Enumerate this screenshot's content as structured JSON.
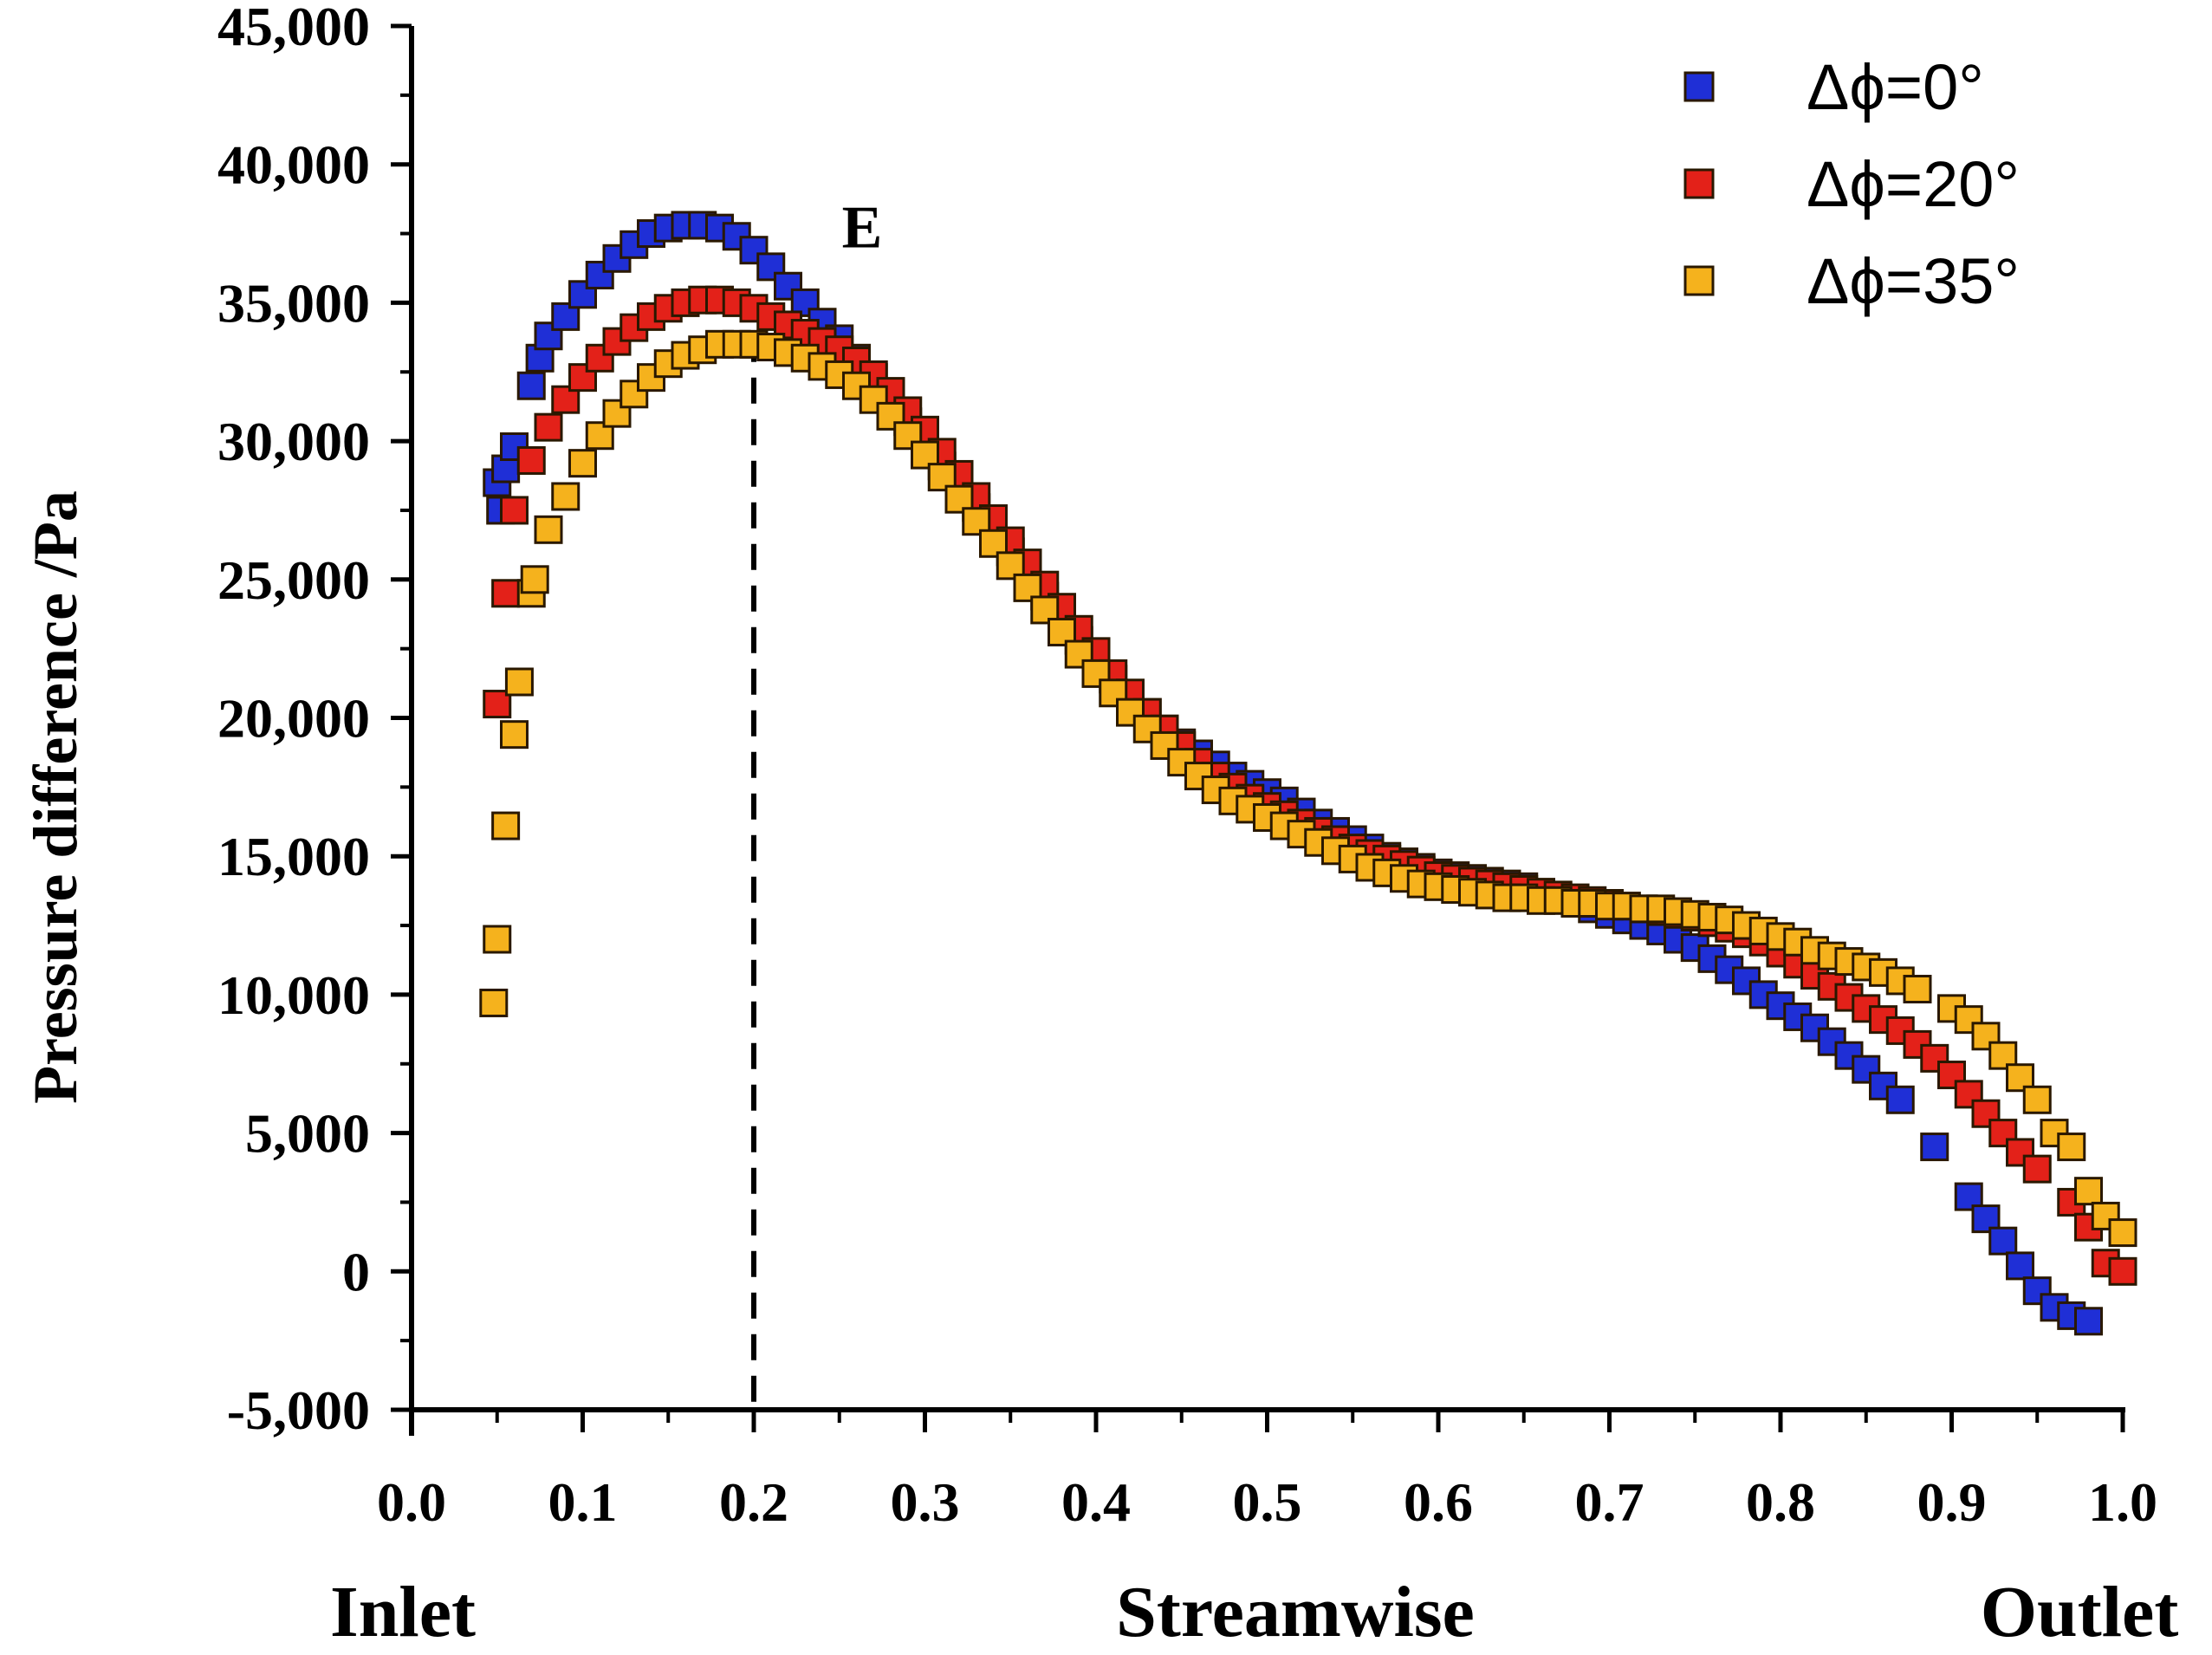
{
  "chart_data": {
    "type": "scatter",
    "title": "",
    "xlabel": "Streamwise",
    "ylabel": "Pressure difference /Pa",
    "x_end_labels": {
      "left": "Inlet",
      "right": "Outlet"
    },
    "xlim": [
      0.0,
      1.0
    ],
    "ylim": [
      -5000,
      45000
    ],
    "x_ticks": [
      "0.0",
      "0.1",
      "0.2",
      "0.3",
      "0.4",
      "0.5",
      "0.6",
      "0.7",
      "0.8",
      "0.9",
      "1.0"
    ],
    "y_ticks": [
      "-5,000",
      "0",
      "5,000",
      "10,000",
      "15,000",
      "20,000",
      "25,000",
      "30,000",
      "35,000",
      "40,000",
      "45,000"
    ],
    "grid": false,
    "legend_position": "top-right",
    "annotation": {
      "label": "E",
      "x": 0.2,
      "style": "dashed vertical line"
    },
    "series": [
      {
        "name": "Δϕ=0°",
        "color": "#1f2fd6",
        "points": [
          [
            0.05,
            28500
          ],
          [
            0.052,
            27500
          ],
          [
            0.055,
            29000
          ],
          [
            0.06,
            29800
          ],
          [
            0.07,
            32000
          ],
          [
            0.075,
            33000
          ],
          [
            0.08,
            33800
          ],
          [
            0.09,
            34500
          ],
          [
            0.1,
            35300
          ],
          [
            0.11,
            36000
          ],
          [
            0.12,
            36600
          ],
          [
            0.13,
            37100
          ],
          [
            0.14,
            37500
          ],
          [
            0.15,
            37700
          ],
          [
            0.16,
            37800
          ],
          [
            0.17,
            37800
          ],
          [
            0.18,
            37700
          ],
          [
            0.19,
            37400
          ],
          [
            0.2,
            36900
          ],
          [
            0.21,
            36300
          ],
          [
            0.22,
            35600
          ],
          [
            0.23,
            35000
          ],
          [
            0.24,
            34300
          ],
          [
            0.25,
            33700
          ],
          [
            0.26,
            33000
          ],
          [
            0.27,
            32300
          ],
          [
            0.28,
            31500
          ],
          [
            0.29,
            30700
          ],
          [
            0.3,
            29900
          ],
          [
            0.31,
            29100
          ],
          [
            0.32,
            28300
          ],
          [
            0.33,
            27600
          ],
          [
            0.34,
            26800
          ],
          [
            0.35,
            26000
          ],
          [
            0.36,
            25200
          ],
          [
            0.37,
            24400
          ],
          [
            0.38,
            23600
          ],
          [
            0.39,
            22800
          ],
          [
            0.4,
            22100
          ],
          [
            0.41,
            21400
          ],
          [
            0.42,
            20800
          ],
          [
            0.43,
            20200
          ],
          [
            0.44,
            19600
          ],
          [
            0.45,
            19100
          ],
          [
            0.46,
            18700
          ],
          [
            0.47,
            18300
          ],
          [
            0.48,
            17900
          ],
          [
            0.49,
            17600
          ],
          [
            0.5,
            17300
          ],
          [
            0.51,
            17000
          ],
          [
            0.52,
            16600
          ],
          [
            0.53,
            16200
          ],
          [
            0.54,
            15900
          ],
          [
            0.55,
            15600
          ],
          [
            0.56,
            15300
          ],
          [
            0.57,
            15000
          ],
          [
            0.58,
            14800
          ],
          [
            0.59,
            14600
          ],
          [
            0.6,
            14400
          ],
          [
            0.61,
            14300
          ],
          [
            0.62,
            14200
          ],
          [
            0.63,
            14100
          ],
          [
            0.64,
            14000
          ],
          [
            0.65,
            13900
          ],
          [
            0.66,
            13700
          ],
          [
            0.67,
            13500
          ],
          [
            0.68,
            13300
          ],
          [
            0.69,
            13100
          ],
          [
            0.7,
            12900
          ],
          [
            0.71,
            12700
          ],
          [
            0.72,
            12500
          ],
          [
            0.73,
            12300
          ],
          [
            0.74,
            12000
          ],
          [
            0.75,
            11700
          ],
          [
            0.76,
            11300
          ],
          [
            0.77,
            10900
          ],
          [
            0.78,
            10500
          ],
          [
            0.79,
            10000
          ],
          [
            0.8,
            9600
          ],
          [
            0.81,
            9200
          ],
          [
            0.82,
            8800
          ],
          [
            0.83,
            8300
          ],
          [
            0.84,
            7800
          ],
          [
            0.85,
            7300
          ],
          [
            0.86,
            6700
          ],
          [
            0.87,
            6200
          ],
          [
            0.89,
            4500
          ],
          [
            0.91,
            2700
          ],
          [
            0.92,
            1900
          ],
          [
            0.93,
            1100
          ],
          [
            0.94,
            200
          ],
          [
            0.95,
            -700
          ],
          [
            0.96,
            -1300
          ],
          [
            0.97,
            -1600
          ],
          [
            0.98,
            -1800
          ]
        ]
      },
      {
        "name": "Δϕ=20°",
        "color": "#e32119",
        "points": [
          [
            0.05,
            20500
          ],
          [
            0.055,
            24500
          ],
          [
            0.06,
            27500
          ],
          [
            0.07,
            29300
          ],
          [
            0.08,
            30500
          ],
          [
            0.09,
            31500
          ],
          [
            0.1,
            32300
          ],
          [
            0.11,
            33000
          ],
          [
            0.12,
            33600
          ],
          [
            0.13,
            34100
          ],
          [
            0.14,
            34500
          ],
          [
            0.15,
            34800
          ],
          [
            0.16,
            35000
          ],
          [
            0.17,
            35100
          ],
          [
            0.18,
            35100
          ],
          [
            0.19,
            35000
          ],
          [
            0.2,
            34800
          ],
          [
            0.21,
            34500
          ],
          [
            0.22,
            34200
          ],
          [
            0.23,
            33900
          ],
          [
            0.24,
            33600
          ],
          [
            0.25,
            33300
          ],
          [
            0.26,
            32900
          ],
          [
            0.27,
            32400
          ],
          [
            0.28,
            31800
          ],
          [
            0.29,
            31100
          ],
          [
            0.3,
            30400
          ],
          [
            0.31,
            29600
          ],
          [
            0.32,
            28800
          ],
          [
            0.33,
            28000
          ],
          [
            0.34,
            27200
          ],
          [
            0.35,
            26400
          ],
          [
            0.36,
            25600
          ],
          [
            0.37,
            24800
          ],
          [
            0.38,
            24000
          ],
          [
            0.39,
            23200
          ],
          [
            0.4,
            22400
          ],
          [
            0.41,
            21600
          ],
          [
            0.42,
            20900
          ],
          [
            0.43,
            20200
          ],
          [
            0.44,
            19600
          ],
          [
            0.45,
            19000
          ],
          [
            0.46,
            18400
          ],
          [
            0.47,
            17900
          ],
          [
            0.48,
            17500
          ],
          [
            0.49,
            17100
          ],
          [
            0.5,
            16800
          ],
          [
            0.51,
            16500
          ],
          [
            0.52,
            16200
          ],
          [
            0.53,
            15900
          ],
          [
            0.54,
            15600
          ],
          [
            0.55,
            15300
          ],
          [
            0.56,
            15100
          ],
          [
            0.57,
            14900
          ],
          [
            0.58,
            14700
          ],
          [
            0.59,
            14500
          ],
          [
            0.6,
            14300
          ],
          [
            0.61,
            14200
          ],
          [
            0.62,
            14100
          ],
          [
            0.63,
            14000
          ],
          [
            0.64,
            13900
          ],
          [
            0.65,
            13800
          ],
          [
            0.66,
            13700
          ],
          [
            0.67,
            13600
          ],
          [
            0.68,
            13500
          ],
          [
            0.69,
            13400
          ],
          [
            0.7,
            13300
          ],
          [
            0.71,
            13200
          ],
          [
            0.72,
            13100
          ],
          [
            0.73,
            13000
          ],
          [
            0.74,
            12900
          ],
          [
            0.75,
            12800
          ],
          [
            0.76,
            12600
          ],
          [
            0.77,
            12400
          ],
          [
            0.78,
            12200
          ],
          [
            0.79,
            11900
          ],
          [
            0.8,
            11500
          ],
          [
            0.81,
            11100
          ],
          [
            0.82,
            10700
          ],
          [
            0.83,
            10300
          ],
          [
            0.84,
            9900
          ],
          [
            0.85,
            9500
          ],
          [
            0.86,
            9100
          ],
          [
            0.87,
            8700
          ],
          [
            0.88,
            8200
          ],
          [
            0.89,
            7700
          ],
          [
            0.9,
            7100
          ],
          [
            0.91,
            6400
          ],
          [
            0.92,
            5700
          ],
          [
            0.93,
            5000
          ],
          [
            0.94,
            4300
          ],
          [
            0.95,
            3700
          ],
          [
            0.97,
            2500
          ],
          [
            0.98,
            1600
          ],
          [
            0.99,
            300
          ],
          [
            1.0,
            0
          ]
        ]
      },
      {
        "name": "Δϕ=35°",
        "color": "#f5b21d",
        "points": [
          [
            0.048,
            9700
          ],
          [
            0.05,
            12000
          ],
          [
            0.055,
            16100
          ],
          [
            0.06,
            19400
          ],
          [
            0.063,
            21300
          ],
          [
            0.07,
            24500
          ],
          [
            0.072,
            25000
          ],
          [
            0.08,
            26800
          ],
          [
            0.09,
            28000
          ],
          [
            0.1,
            29200
          ],
          [
            0.11,
            30200
          ],
          [
            0.12,
            31000
          ],
          [
            0.13,
            31700
          ],
          [
            0.14,
            32300
          ],
          [
            0.15,
            32800
          ],
          [
            0.16,
            33100
          ],
          [
            0.17,
            33300
          ],
          [
            0.18,
            33500
          ],
          [
            0.19,
            33500
          ],
          [
            0.2,
            33500
          ],
          [
            0.21,
            33400
          ],
          [
            0.22,
            33200
          ],
          [
            0.23,
            33000
          ],
          [
            0.24,
            32700
          ],
          [
            0.25,
            32400
          ],
          [
            0.26,
            32000
          ],
          [
            0.27,
            31500
          ],
          [
            0.28,
            30900
          ],
          [
            0.29,
            30200
          ],
          [
            0.3,
            29500
          ],
          [
            0.31,
            28700
          ],
          [
            0.32,
            27900
          ],
          [
            0.33,
            27100
          ],
          [
            0.34,
            26300
          ],
          [
            0.35,
            25500
          ],
          [
            0.36,
            24700
          ],
          [
            0.37,
            23900
          ],
          [
            0.38,
            23100
          ],
          [
            0.39,
            22300
          ],
          [
            0.4,
            21600
          ],
          [
            0.41,
            20900
          ],
          [
            0.42,
            20200
          ],
          [
            0.43,
            19600
          ],
          [
            0.44,
            19000
          ],
          [
            0.45,
            18400
          ],
          [
            0.46,
            17900
          ],
          [
            0.47,
            17400
          ],
          [
            0.48,
            17000
          ],
          [
            0.49,
            16700
          ],
          [
            0.5,
            16400
          ],
          [
            0.51,
            16100
          ],
          [
            0.52,
            15800
          ],
          [
            0.53,
            15500
          ],
          [
            0.54,
            15200
          ],
          [
            0.55,
            14900
          ],
          [
            0.56,
            14600
          ],
          [
            0.57,
            14400
          ],
          [
            0.58,
            14200
          ],
          [
            0.59,
            14000
          ],
          [
            0.6,
            13900
          ],
          [
            0.61,
            13800
          ],
          [
            0.62,
            13700
          ],
          [
            0.63,
            13600
          ],
          [
            0.64,
            13500
          ],
          [
            0.65,
            13500
          ],
          [
            0.66,
            13400
          ],
          [
            0.67,
            13400
          ],
          [
            0.68,
            13300
          ],
          [
            0.69,
            13300
          ],
          [
            0.7,
            13200
          ],
          [
            0.71,
            13200
          ],
          [
            0.72,
            13100
          ],
          [
            0.73,
            13100
          ],
          [
            0.74,
            13000
          ],
          [
            0.75,
            12900
          ],
          [
            0.76,
            12800
          ],
          [
            0.77,
            12700
          ],
          [
            0.78,
            12500
          ],
          [
            0.79,
            12300
          ],
          [
            0.8,
            12100
          ],
          [
            0.81,
            11900
          ],
          [
            0.82,
            11600
          ],
          [
            0.83,
            11400
          ],
          [
            0.84,
            11200
          ],
          [
            0.85,
            11000
          ],
          [
            0.86,
            10800
          ],
          [
            0.87,
            10500
          ],
          [
            0.88,
            10200
          ],
          [
            0.9,
            9500
          ],
          [
            0.91,
            9100
          ],
          [
            0.92,
            8500
          ],
          [
            0.93,
            7800
          ],
          [
            0.94,
            7000
          ],
          [
            0.95,
            6200
          ],
          [
            0.96,
            5000
          ],
          [
            0.97,
            4500
          ],
          [
            0.98,
            2900
          ],
          [
            0.99,
            2000
          ],
          [
            1.0,
            1400
          ]
        ]
      }
    ]
  }
}
